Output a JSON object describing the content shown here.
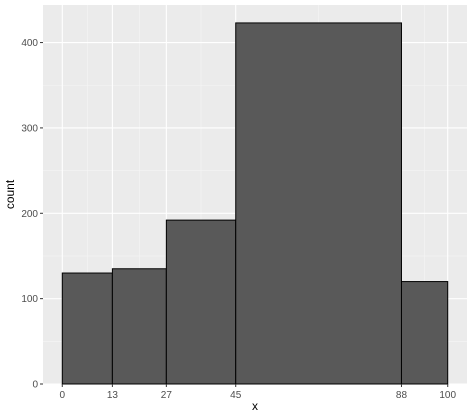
{
  "chart_data": {
    "type": "bar",
    "subtype": "histogram",
    "bins": [
      {
        "start": 0,
        "end": 13,
        "count": 130
      },
      {
        "start": 13,
        "end": 27,
        "count": 135
      },
      {
        "start": 27,
        "end": 45,
        "count": 192
      },
      {
        "start": 45,
        "end": 88,
        "count": 423
      },
      {
        "start": 88,
        "end": 100,
        "count": 120
      }
    ],
    "xlabel": "x",
    "ylabel": "count",
    "x_ticks": [
      "0",
      "13",
      "27",
      "45",
      "88",
      "100"
    ],
    "y_ticks": [
      "0",
      "100",
      "200",
      "300",
      "400"
    ],
    "xlim": [
      -5,
      105
    ],
    "ylim": [
      0,
      444
    ],
    "grid": true,
    "colors": {
      "panel_background": "#ebebeb",
      "grid_major": "#ffffff",
      "grid_minor": "#f5f5f5",
      "bar_fill": "#595959",
      "bar_stroke": "#000000",
      "tick_label": "#4d4d4d",
      "tick_mark": "#333333"
    }
  }
}
